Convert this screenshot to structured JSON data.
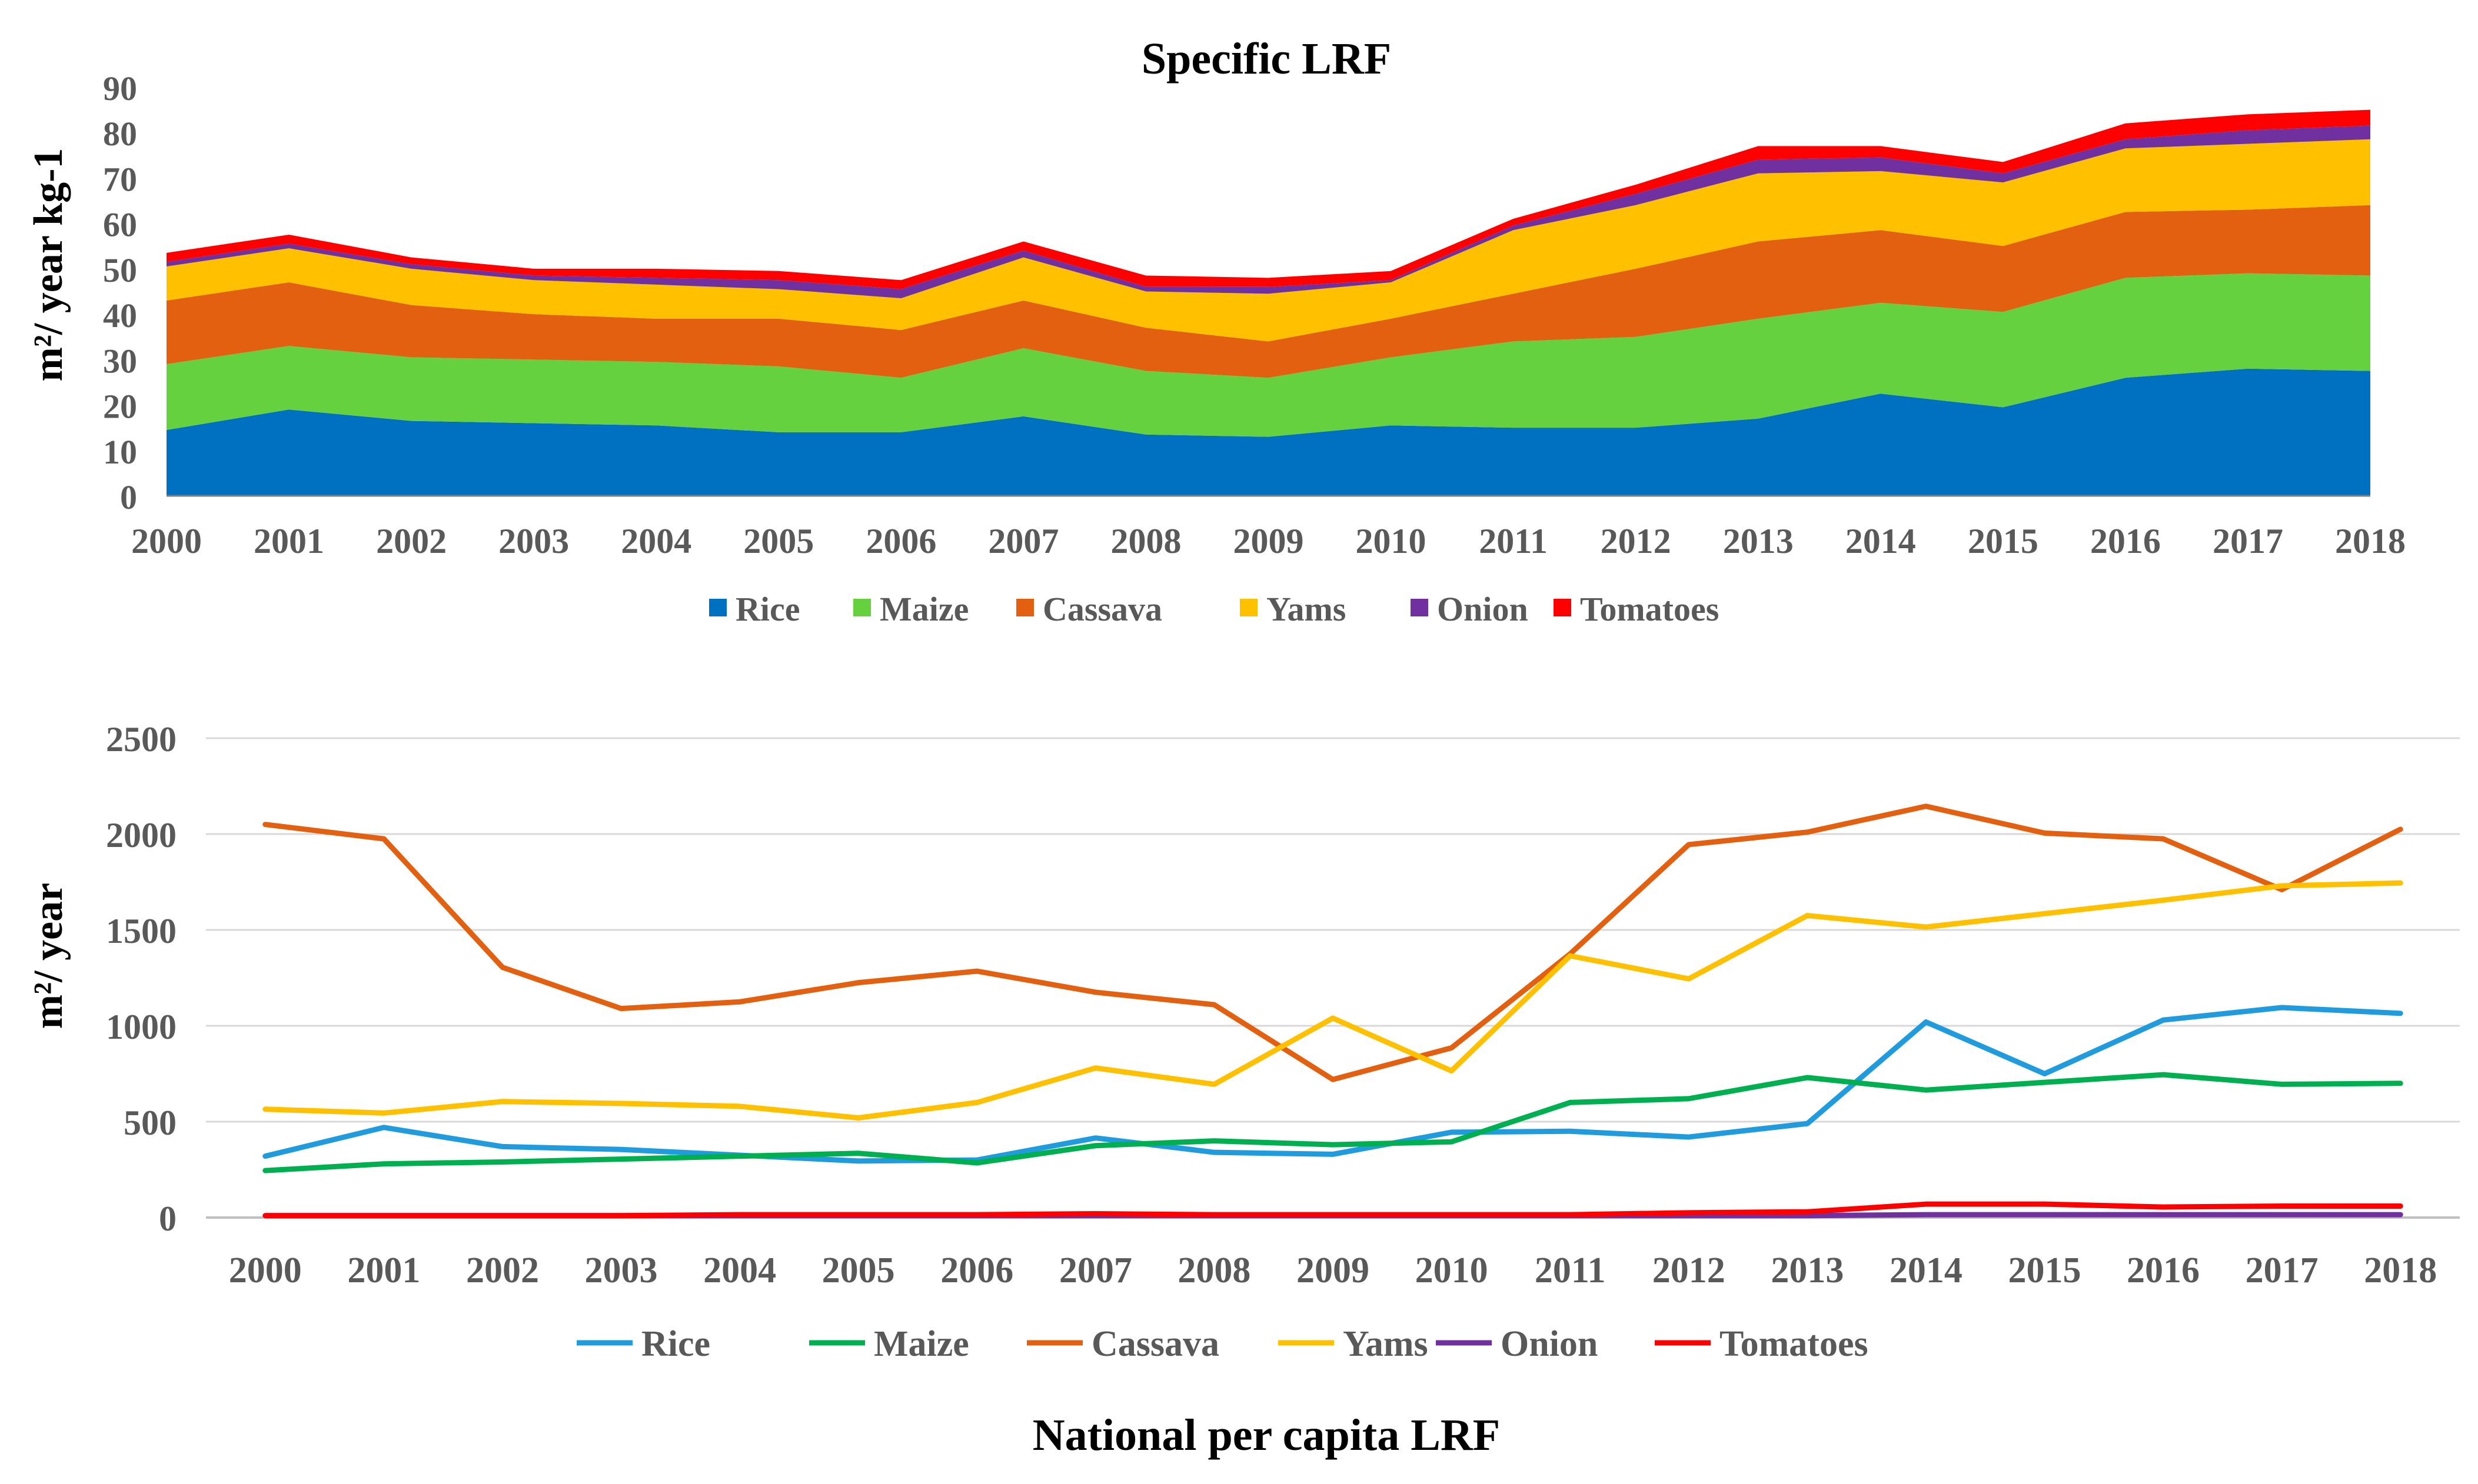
{
  "chart_data": [
    {
      "type": "area",
      "stacked": true,
      "title": "Specific LRF",
      "xlabel": "",
      "ylabel": "m²/ year kg-1",
      "ylim": [
        0,
        90
      ],
      "yticks": [
        "0",
        "10",
        "20",
        "30",
        "40",
        "50",
        "60",
        "70",
        "80",
        "90"
      ],
      "grid": false,
      "legend_position": "bottom",
      "categories": [
        "2000",
        "2001",
        "2002",
        "2003",
        "2004",
        "2005",
        "2006",
        "2007",
        "2008",
        "2009",
        "2010",
        "2011",
        "2012",
        "2013",
        "2014",
        "2015",
        "2016",
        "2017",
        "2018"
      ],
      "series": [
        {
          "name": "Rice",
          "color": "#0070c0",
          "values": [
            14.5,
            19,
            16.5,
            16,
            15.5,
            14,
            14,
            17.5,
            13.5,
            13,
            15.5,
            15,
            15,
            17,
            22.5,
            19.5,
            26,
            28,
            27.5
          ]
        },
        {
          "name": "Maize",
          "color": "#66d13f",
          "values": [
            14.5,
            14,
            14,
            14,
            14,
            14.5,
            12,
            15,
            14,
            13,
            15,
            19,
            20,
            22,
            20,
            21,
            22,
            21,
            21
          ]
        },
        {
          "name": "Cassava",
          "color": "#e26010",
          "values": [
            14,
            14,
            11.5,
            10,
            9.5,
            10.5,
            10.5,
            10.5,
            9.5,
            8,
            8.5,
            10.5,
            15,
            17,
            16,
            14.5,
            14.5,
            14,
            15.5
          ]
        },
        {
          "name": "Yams",
          "color": "#ffc000",
          "values": [
            7.5,
            7.5,
            8,
            7.5,
            7.5,
            6.5,
            7,
            9.5,
            8,
            10.5,
            8,
            14,
            14,
            15,
            13,
            14,
            14,
            14.5,
            14.5
          ]
        },
        {
          "name": "Onion",
          "color": "#7030a0",
          "values": [
            1,
            1,
            1,
            1,
            1.5,
            2,
            2,
            1.5,
            1,
            1.5,
            0.5,
            1,
            2.5,
            3,
            3,
            2,
            2,
            3,
            3
          ]
        },
        {
          "name": "Tomatoes",
          "color": "#ff0000",
          "values": [
            2,
            2,
            1.5,
            1.5,
            2,
            2,
            2,
            2,
            2.5,
            2,
            2,
            1.5,
            2,
            3,
            2.5,
            2.5,
            3.5,
            3.5,
            3.5
          ]
        }
      ]
    },
    {
      "type": "line",
      "title": "National per capita LRF",
      "xlabel": "",
      "ylabel": "m²/ year",
      "ylim": [
        0,
        2500
      ],
      "yticks": [
        "0",
        "500",
        "1000",
        "1500",
        "2000",
        "2500"
      ],
      "grid": true,
      "legend_position": "bottom",
      "categories": [
        "2000",
        "2001",
        "2002",
        "2003",
        "2004",
        "2005",
        "2006",
        "2007",
        "2008",
        "2009",
        "2010",
        "2011",
        "2012",
        "2013",
        "2014",
        "2015",
        "2016",
        "2017",
        "2018"
      ],
      "series": [
        {
          "name": "Rice",
          "color": "#1f9bde",
          "values": [
            320,
            470,
            370,
            355,
            325,
            295,
            300,
            415,
            340,
            330,
            445,
            450,
            420,
            490,
            1020,
            750,
            1030,
            1095,
            1065
          ]
        },
        {
          "name": "Maize",
          "color": "#00b050",
          "values": [
            245,
            280,
            290,
            305,
            320,
            335,
            285,
            375,
            400,
            380,
            395,
            600,
            620,
            730,
            665,
            705,
            745,
            695,
            700
          ]
        },
        {
          "name": "Cassava",
          "color": "#e26010",
          "values": [
            2050,
            1975,
            1305,
            1090,
            1125,
            1225,
            1285,
            1175,
            1110,
            720,
            885,
            1375,
            1945,
            2010,
            2145,
            2005,
            1975,
            1710,
            2025
          ]
        },
        {
          "name": "Yams",
          "color": "#ffc000",
          "values": [
            565,
            545,
            605,
            595,
            580,
            520,
            600,
            780,
            695,
            1040,
            765,
            1365,
            1245,
            1575,
            1515,
            1585,
            1655,
            1730,
            1745
          ]
        },
        {
          "name": "Onion",
          "color": "#7030a0",
          "values": [
            10,
            10,
            10,
            10,
            10,
            10,
            10,
            10,
            10,
            10,
            10,
            10,
            10,
            10,
            15,
            15,
            15,
            15,
            15
          ]
        },
        {
          "name": "Tomatoes",
          "color": "#ff0000",
          "values": [
            10,
            10,
            10,
            10,
            15,
            15,
            15,
            20,
            15,
            15,
            15,
            15,
            25,
            30,
            70,
            70,
            55,
            60,
            60
          ]
        }
      ]
    }
  ]
}
